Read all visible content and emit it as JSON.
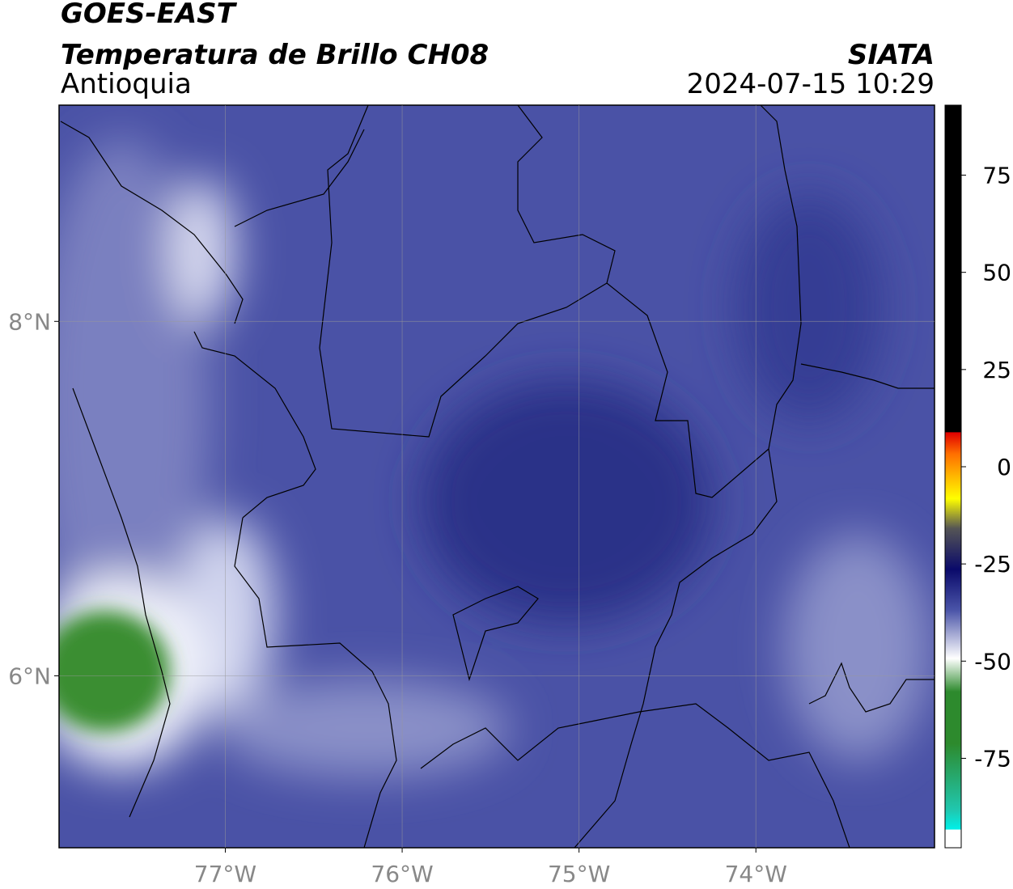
{
  "chart_data": {
    "type": "contour-map",
    "title": "GOES-EAST",
    "subtitle": "Temperatura de Brillo CH08",
    "region": "Antioquia",
    "source": "SIATA",
    "timestamp": "2024-07-15 10:29",
    "xlim": [
      -77.94,
      -72.99
    ],
    "ylim": [
      5.03,
      9.22
    ],
    "xticks": [
      {
        "value": -77,
        "label": "77°W"
      },
      {
        "value": -76,
        "label": "76°W"
      },
      {
        "value": -75,
        "label": "75°W"
      },
      {
        "value": -74,
        "label": "74°W"
      }
    ],
    "yticks": [
      {
        "value": 6,
        "label": "6°N"
      },
      {
        "value": 8,
        "label": "8°N"
      }
    ],
    "grid": true,
    "colorbar": {
      "lim": [
        -98,
        93
      ],
      "ticks": [
        75,
        50,
        25,
        0,
        -25,
        -50,
        -75
      ]
    }
  }
}
